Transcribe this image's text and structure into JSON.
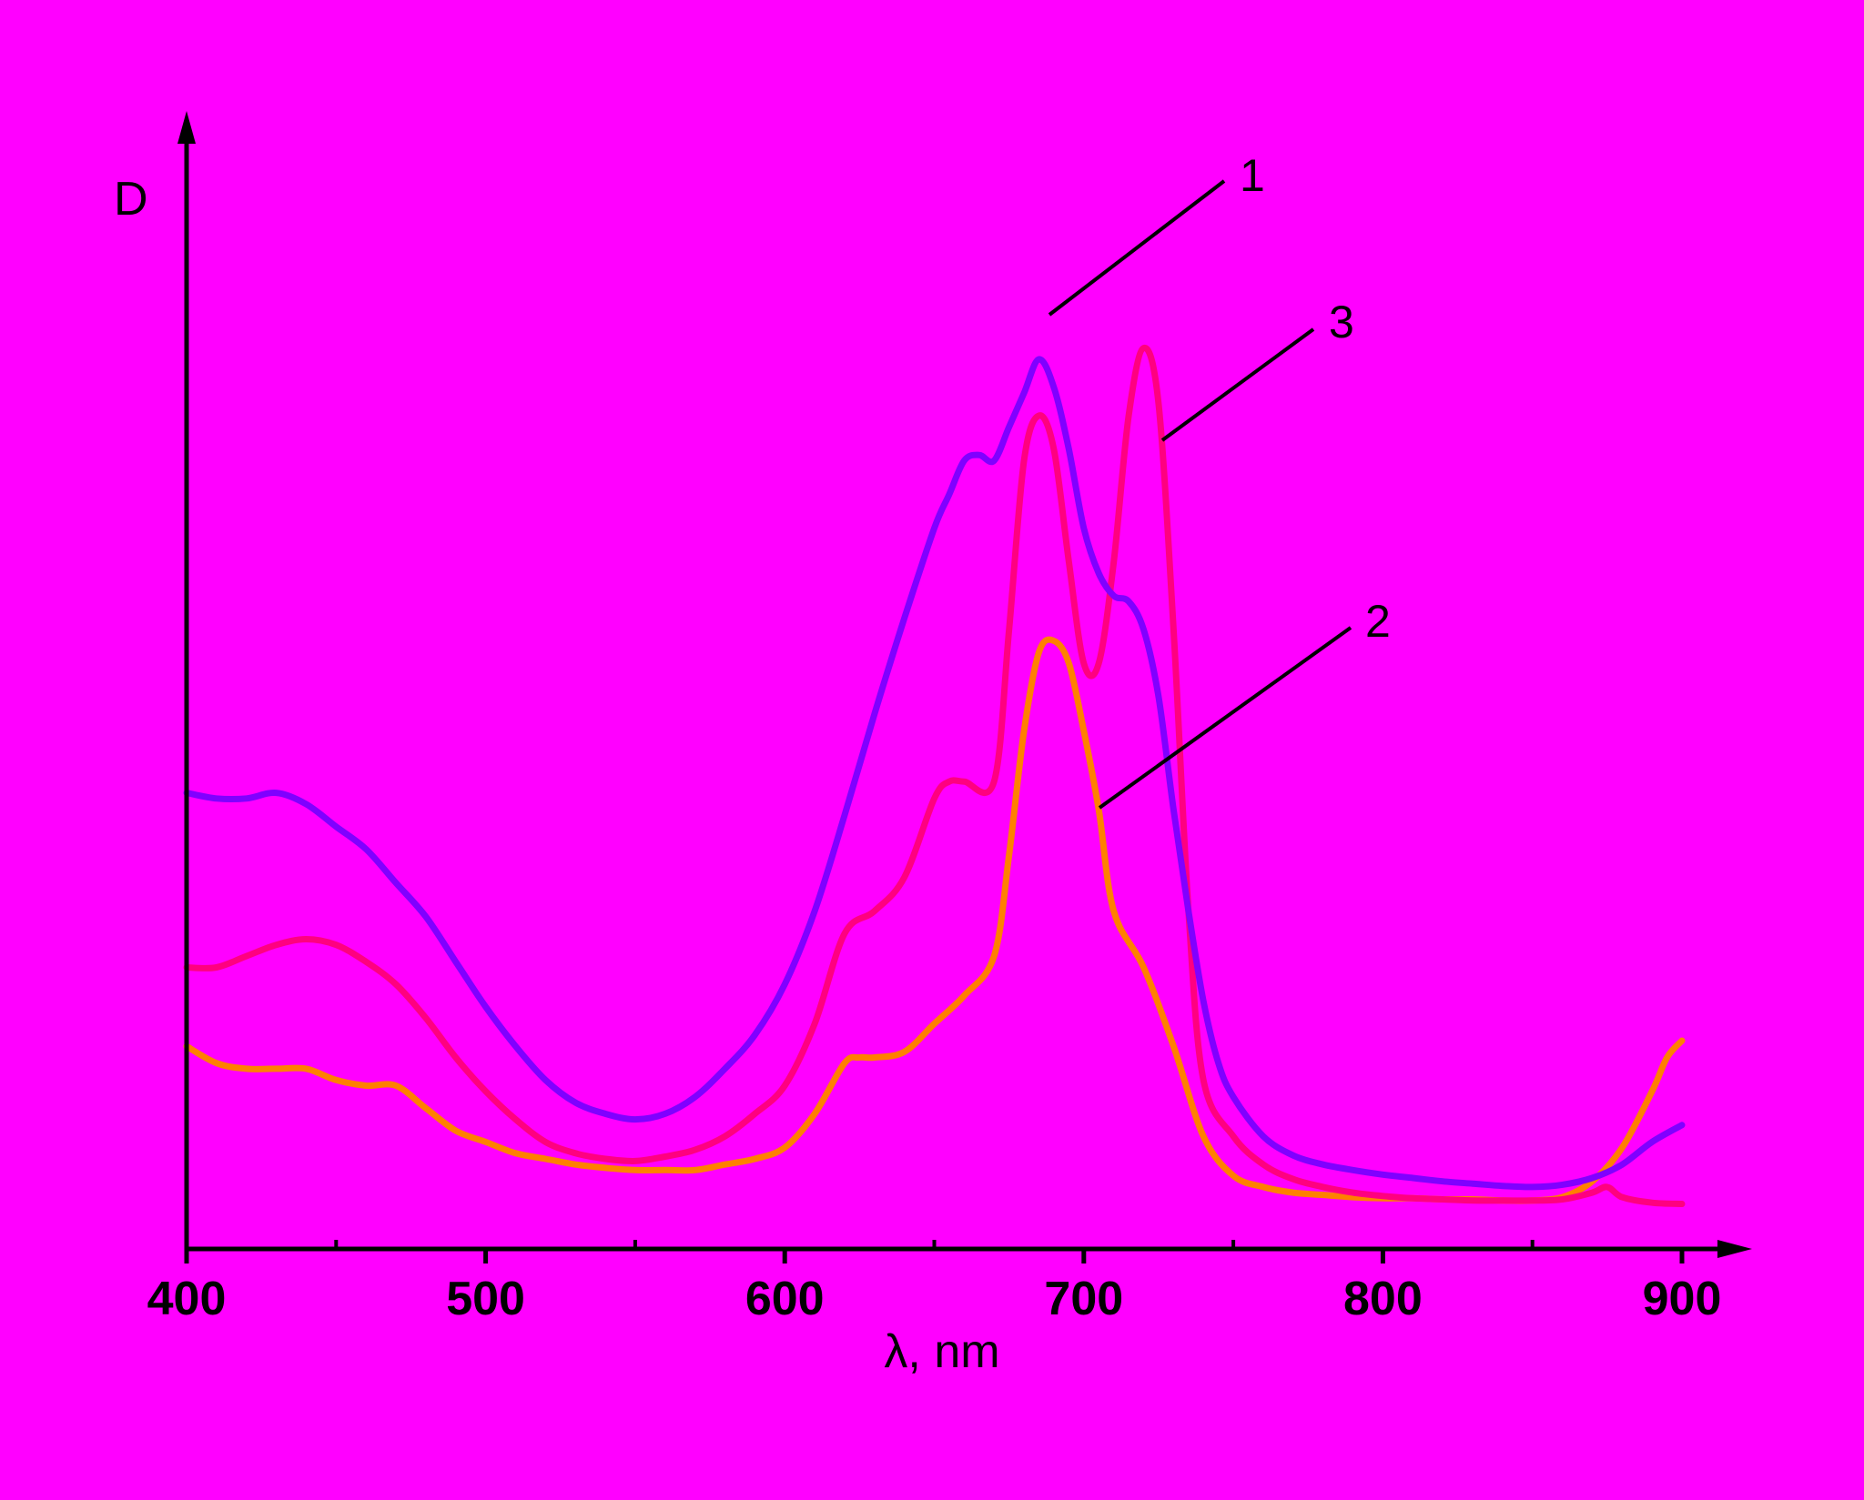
{
  "chart_data": {
    "type": "line",
    "ylabel": "D",
    "xlabel": "λ, nm",
    "xlim": [
      400,
      900
    ],
    "ylim": [
      0,
      1.0
    ],
    "x_ticks": [
      "400",
      "500",
      "600",
      "700",
      "800",
      "900"
    ],
    "x_tick_values": [
      400,
      500,
      600,
      700,
      800,
      900
    ],
    "grid": false,
    "colors": {
      "background": "#FF00FF",
      "axis": "#000000",
      "series_1": "#8000FF",
      "series_2": "#FF8000",
      "series_3": "#FF0080"
    },
    "series": [
      {
        "name": "1",
        "x": [
          400,
          410,
          420,
          430,
          440,
          450,
          460,
          470,
          480,
          490,
          500,
          510,
          520,
          530,
          540,
          550,
          560,
          570,
          580,
          590,
          600,
          610,
          620,
          630,
          640,
          650,
          655,
          660,
          665,
          670,
          675,
          680,
          685,
          690,
          695,
          700,
          705,
          710,
          715,
          720,
          725,
          730,
          735,
          740,
          745,
          750,
          760,
          770,
          780,
          790,
          800,
          810,
          820,
          830,
          840,
          850,
          860,
          870,
          880,
          890,
          900
        ],
        "y": [
          0.405,
          0.4,
          0.4,
          0.405,
          0.395,
          0.375,
          0.355,
          0.325,
          0.295,
          0.255,
          0.215,
          0.18,
          0.15,
          0.13,
          0.12,
          0.115,
          0.12,
          0.135,
          0.16,
          0.19,
          0.235,
          0.3,
          0.385,
          0.475,
          0.56,
          0.64,
          0.67,
          0.7,
          0.705,
          0.7,
          0.73,
          0.76,
          0.79,
          0.765,
          0.71,
          0.64,
          0.6,
          0.58,
          0.575,
          0.55,
          0.49,
          0.39,
          0.3,
          0.22,
          0.165,
          0.135,
          0.1,
          0.083,
          0.075,
          0.07,
          0.066,
          0.063,
          0.06,
          0.058,
          0.056,
          0.055,
          0.057,
          0.063,
          0.075,
          0.095,
          0.11
        ]
      },
      {
        "name": "2",
        "x": [
          400,
          410,
          420,
          430,
          440,
          450,
          460,
          470,
          480,
          490,
          500,
          510,
          520,
          530,
          540,
          550,
          560,
          570,
          580,
          590,
          600,
          610,
          620,
          625,
          630,
          640,
          650,
          660,
          670,
          675,
          680,
          685,
          690,
          695,
          700,
          705,
          710,
          720,
          730,
          740,
          750,
          760,
          770,
          780,
          790,
          800,
          810,
          820,
          830,
          840,
          850,
          860,
          870,
          880,
          890,
          895,
          900
        ],
        "y": [
          0.18,
          0.165,
          0.16,
          0.16,
          0.16,
          0.15,
          0.145,
          0.145,
          0.125,
          0.105,
          0.095,
          0.085,
          0.08,
          0.075,
          0.072,
          0.07,
          0.07,
          0.07,
          0.075,
          0.08,
          0.09,
          0.12,
          0.165,
          0.17,
          0.17,
          0.175,
          0.2,
          0.225,
          0.26,
          0.35,
          0.46,
          0.53,
          0.54,
          0.52,
          0.46,
          0.39,
          0.3,
          0.25,
          0.18,
          0.1,
          0.065,
          0.055,
          0.05,
          0.048,
          0.046,
          0.045,
          0.045,
          0.044,
          0.044,
          0.043,
          0.043,
          0.046,
          0.06,
          0.09,
          0.14,
          0.17,
          0.185
        ]
      },
      {
        "name": "3",
        "x": [
          400,
          410,
          420,
          430,
          440,
          450,
          460,
          470,
          480,
          490,
          500,
          510,
          520,
          530,
          540,
          550,
          560,
          570,
          580,
          590,
          600,
          610,
          620,
          630,
          640,
          650,
          655,
          660,
          670,
          675,
          680,
          685,
          690,
          695,
          700,
          705,
          710,
          715,
          720,
          725,
          730,
          735,
          740,
          750,
          760,
          770,
          780,
          790,
          800,
          810,
          820,
          830,
          840,
          850,
          860,
          870,
          875,
          880,
          890,
          900
        ],
        "y": [
          0.25,
          0.25,
          0.26,
          0.27,
          0.275,
          0.27,
          0.255,
          0.235,
          0.205,
          0.17,
          0.14,
          0.115,
          0.095,
          0.085,
          0.08,
          0.078,
          0.082,
          0.088,
          0.1,
          0.12,
          0.145,
          0.2,
          0.28,
          0.3,
          0.33,
          0.4,
          0.415,
          0.415,
          0.415,
          0.55,
          0.7,
          0.74,
          0.71,
          0.61,
          0.52,
          0.52,
          0.61,
          0.74,
          0.8,
          0.75,
          0.55,
          0.3,
          0.15,
          0.1,
          0.075,
          0.062,
          0.055,
          0.05,
          0.047,
          0.045,
          0.044,
          0.043,
          0.043,
          0.043,
          0.044,
          0.05,
          0.055,
          0.046,
          0.041,
          0.04
        ]
      }
    ]
  }
}
